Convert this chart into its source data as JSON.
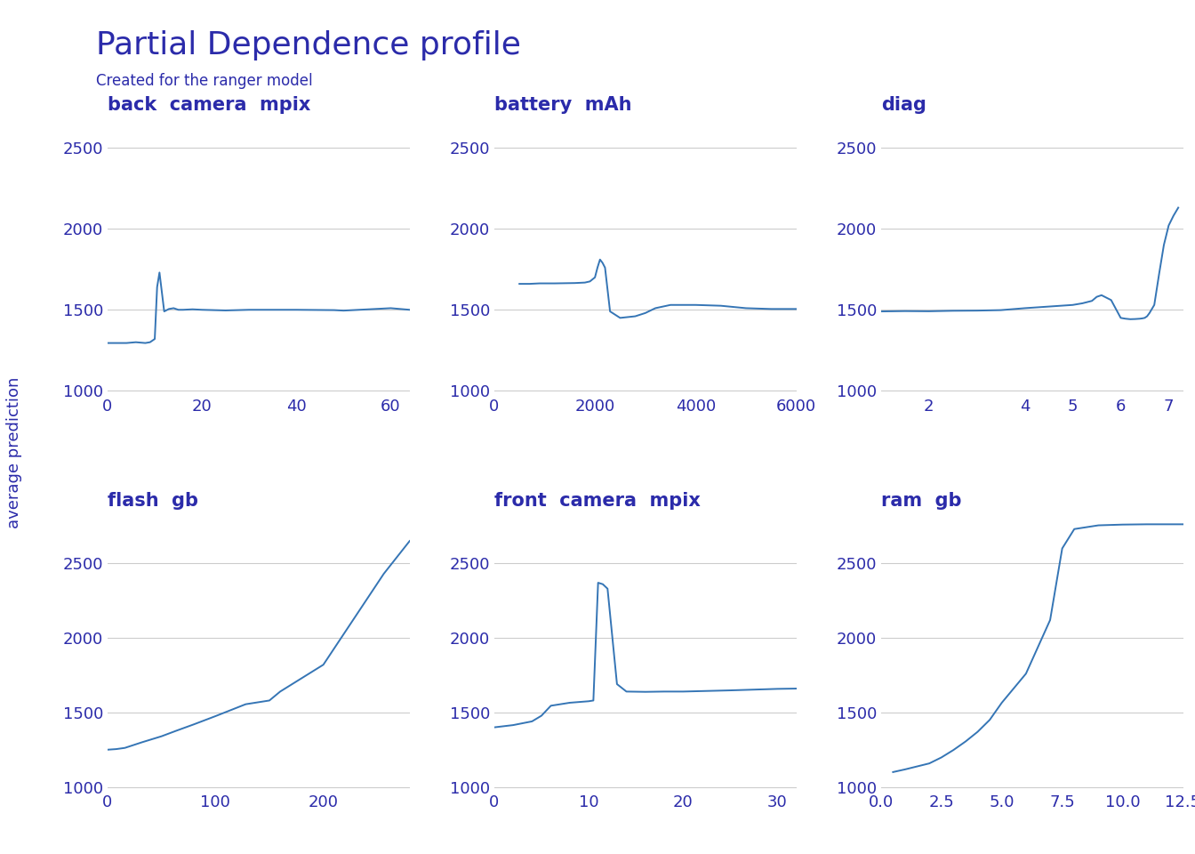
{
  "title": "Partial Dependence profile",
  "subtitle": "Created for the ranger model",
  "ylabel": "average prediction",
  "title_color": "#2B2BAA",
  "line_color": "#3575B5",
  "text_color": "#2B2BAA",
  "bg_color": "#FFFFFF",
  "grid_color": "#CCCCCC",
  "subplots": [
    {
      "name": "back_camera_mpix",
      "label": "back  camera  mpix",
      "x": [
        0,
        1,
        2,
        4,
        6,
        8,
        9,
        10,
        10.5,
        11,
        12,
        13,
        14,
        15,
        16,
        18,
        20,
        25,
        30,
        40,
        48,
        50,
        60,
        64
      ],
      "y": [
        1295,
        1295,
        1295,
        1295,
        1300,
        1295,
        1300,
        1320,
        1640,
        1730,
        1490,
        1505,
        1510,
        1500,
        1500,
        1503,
        1500,
        1496,
        1500,
        1500,
        1498,
        1495,
        1510,
        1500
      ],
      "xlim": [
        0,
        64
      ],
      "ylim": [
        980,
        2700
      ],
      "yticks": [
        1000,
        1500,
        2000,
        2500
      ],
      "xticks": [
        0,
        20,
        40,
        60
      ]
    },
    {
      "name": "battery_mAh",
      "label": "battery  mAh",
      "x": [
        500,
        700,
        900,
        1200,
        1600,
        1800,
        1900,
        2000,
        2050,
        2100,
        2150,
        2200,
        2300,
        2500,
        2800,
        3000,
        3200,
        3500,
        4000,
        4500,
        5000,
        5500,
        6000
      ],
      "y": [
        1660,
        1660,
        1663,
        1663,
        1665,
        1668,
        1675,
        1700,
        1760,
        1810,
        1790,
        1760,
        1490,
        1450,
        1460,
        1480,
        1510,
        1530,
        1530,
        1525,
        1510,
        1505,
        1505
      ],
      "xlim": [
        500,
        6000
      ],
      "ylim": [
        980,
        2700
      ],
      "yticks": [
        1000,
        1500,
        2000,
        2500
      ],
      "xticks": [
        0,
        2000,
        4000,
        6000
      ]
    },
    {
      "name": "diag",
      "label": "diag",
      "x": [
        1.0,
        1.5,
        2.0,
        2.5,
        3.0,
        3.5,
        4.0,
        4.5,
        5.0,
        5.2,
        5.4,
        5.5,
        5.6,
        5.7,
        5.8,
        6.0,
        6.1,
        6.2,
        6.3,
        6.4,
        6.45,
        6.5,
        6.55,
        6.6,
        6.65,
        6.7,
        6.8,
        6.9,
        7.0,
        7.1,
        7.2
      ],
      "y": [
        1490,
        1492,
        1491,
        1494,
        1495,
        1498,
        1510,
        1520,
        1530,
        1540,
        1555,
        1580,
        1590,
        1575,
        1560,
        1450,
        1445,
        1442,
        1443,
        1445,
        1447,
        1450,
        1460,
        1480,
        1505,
        1530,
        1720,
        1900,
        2020,
        2080,
        2130
      ],
      "xlim": [
        1.0,
        7.3
      ],
      "ylim": [
        980,
        2700
      ],
      "yticks": [
        1000,
        1500,
        2000,
        2500
      ],
      "xticks": [
        2,
        4,
        5,
        6,
        7
      ]
    },
    {
      "name": "flash_gb",
      "label": "flash  gb",
      "x": [
        0,
        4,
        8,
        16,
        32,
        50,
        64,
        80,
        100,
        128,
        150,
        160,
        200,
        256,
        280
      ],
      "y": [
        1250,
        1252,
        1254,
        1262,
        1300,
        1340,
        1378,
        1420,
        1475,
        1555,
        1580,
        1640,
        1820,
        2430,
        2650
      ],
      "xlim": [
        0,
        280
      ],
      "ylim": [
        980,
        2850
      ],
      "yticks": [
        1000,
        1500,
        2000,
        2500
      ],
      "xticks": [
        0,
        100,
        200
      ]
    },
    {
      "name": "front_camera_mpix",
      "label": "front  camera  mpix",
      "x": [
        0,
        2,
        4,
        5,
        6,
        8,
        10,
        10.5,
        11,
        11.5,
        12,
        13,
        14,
        16,
        18,
        20,
        25,
        30,
        32
      ],
      "y": [
        1400,
        1415,
        1440,
        1478,
        1545,
        1565,
        1575,
        1580,
        2370,
        2360,
        2330,
        1690,
        1640,
        1638,
        1640,
        1640,
        1648,
        1658,
        1660
      ],
      "xlim": [
        0,
        32
      ],
      "ylim": [
        980,
        2850
      ],
      "yticks": [
        1000,
        1500,
        2000,
        2500
      ],
      "xticks": [
        0,
        10,
        20,
        30
      ]
    },
    {
      "name": "ram_gb",
      "label": "ram  gb",
      "x": [
        0.5,
        1.0,
        1.5,
        2.0,
        2.5,
        3.0,
        3.5,
        4.0,
        4.5,
        5.0,
        6.0,
        7.0,
        7.5,
        8.0,
        9.0,
        10.0,
        11.0,
        12.0,
        12.5
      ],
      "y": [
        1100,
        1118,
        1138,
        1158,
        1198,
        1248,
        1305,
        1370,
        1450,
        1565,
        1760,
        2120,
        2600,
        2730,
        2755,
        2760,
        2762,
        2762,
        2762
      ],
      "xlim": [
        0.0,
        12.5
      ],
      "ylim": [
        980,
        2850
      ],
      "yticks": [
        1000,
        1500,
        2000,
        2500
      ],
      "xticks": [
        0.0,
        2.5,
        5.0,
        7.5,
        10.0,
        12.5
      ]
    }
  ]
}
